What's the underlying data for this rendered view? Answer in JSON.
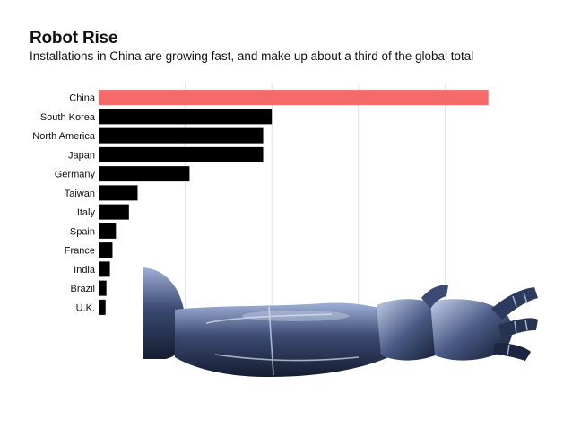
{
  "chart_data": {
    "type": "bar",
    "orientation": "horizontal",
    "title": "Robot Rise",
    "subtitle": "Installations in China are growing fast, and make up about a third of the global total",
    "categories": [
      "China",
      "South Korea",
      "North America",
      "Japan",
      "Germany",
      "Taiwan",
      "Italy",
      "Spain",
      "France",
      "India",
      "Brazil",
      "U.K."
    ],
    "values": [
      90,
      40,
      38,
      38,
      21,
      9,
      7,
      4,
      3.2,
      2.6,
      1.8,
      1.6
    ],
    "xlim": [
      0,
      100
    ],
    "gridlines": [
      20,
      40,
      60,
      80
    ],
    "grid": true,
    "xlabel": "",
    "ylabel": "",
    "colors": {
      "highlight": "#f46a6b",
      "default": "#000000",
      "grid": "#e2e2e2"
    },
    "highlight_category": "China"
  },
  "decoration": {
    "name": "robotic-arm-illustration",
    "colors": {
      "dark": "#141c30",
      "mid": "#3b4a72",
      "light": "#9fb0d6",
      "shine": "#dfe6f5"
    }
  }
}
